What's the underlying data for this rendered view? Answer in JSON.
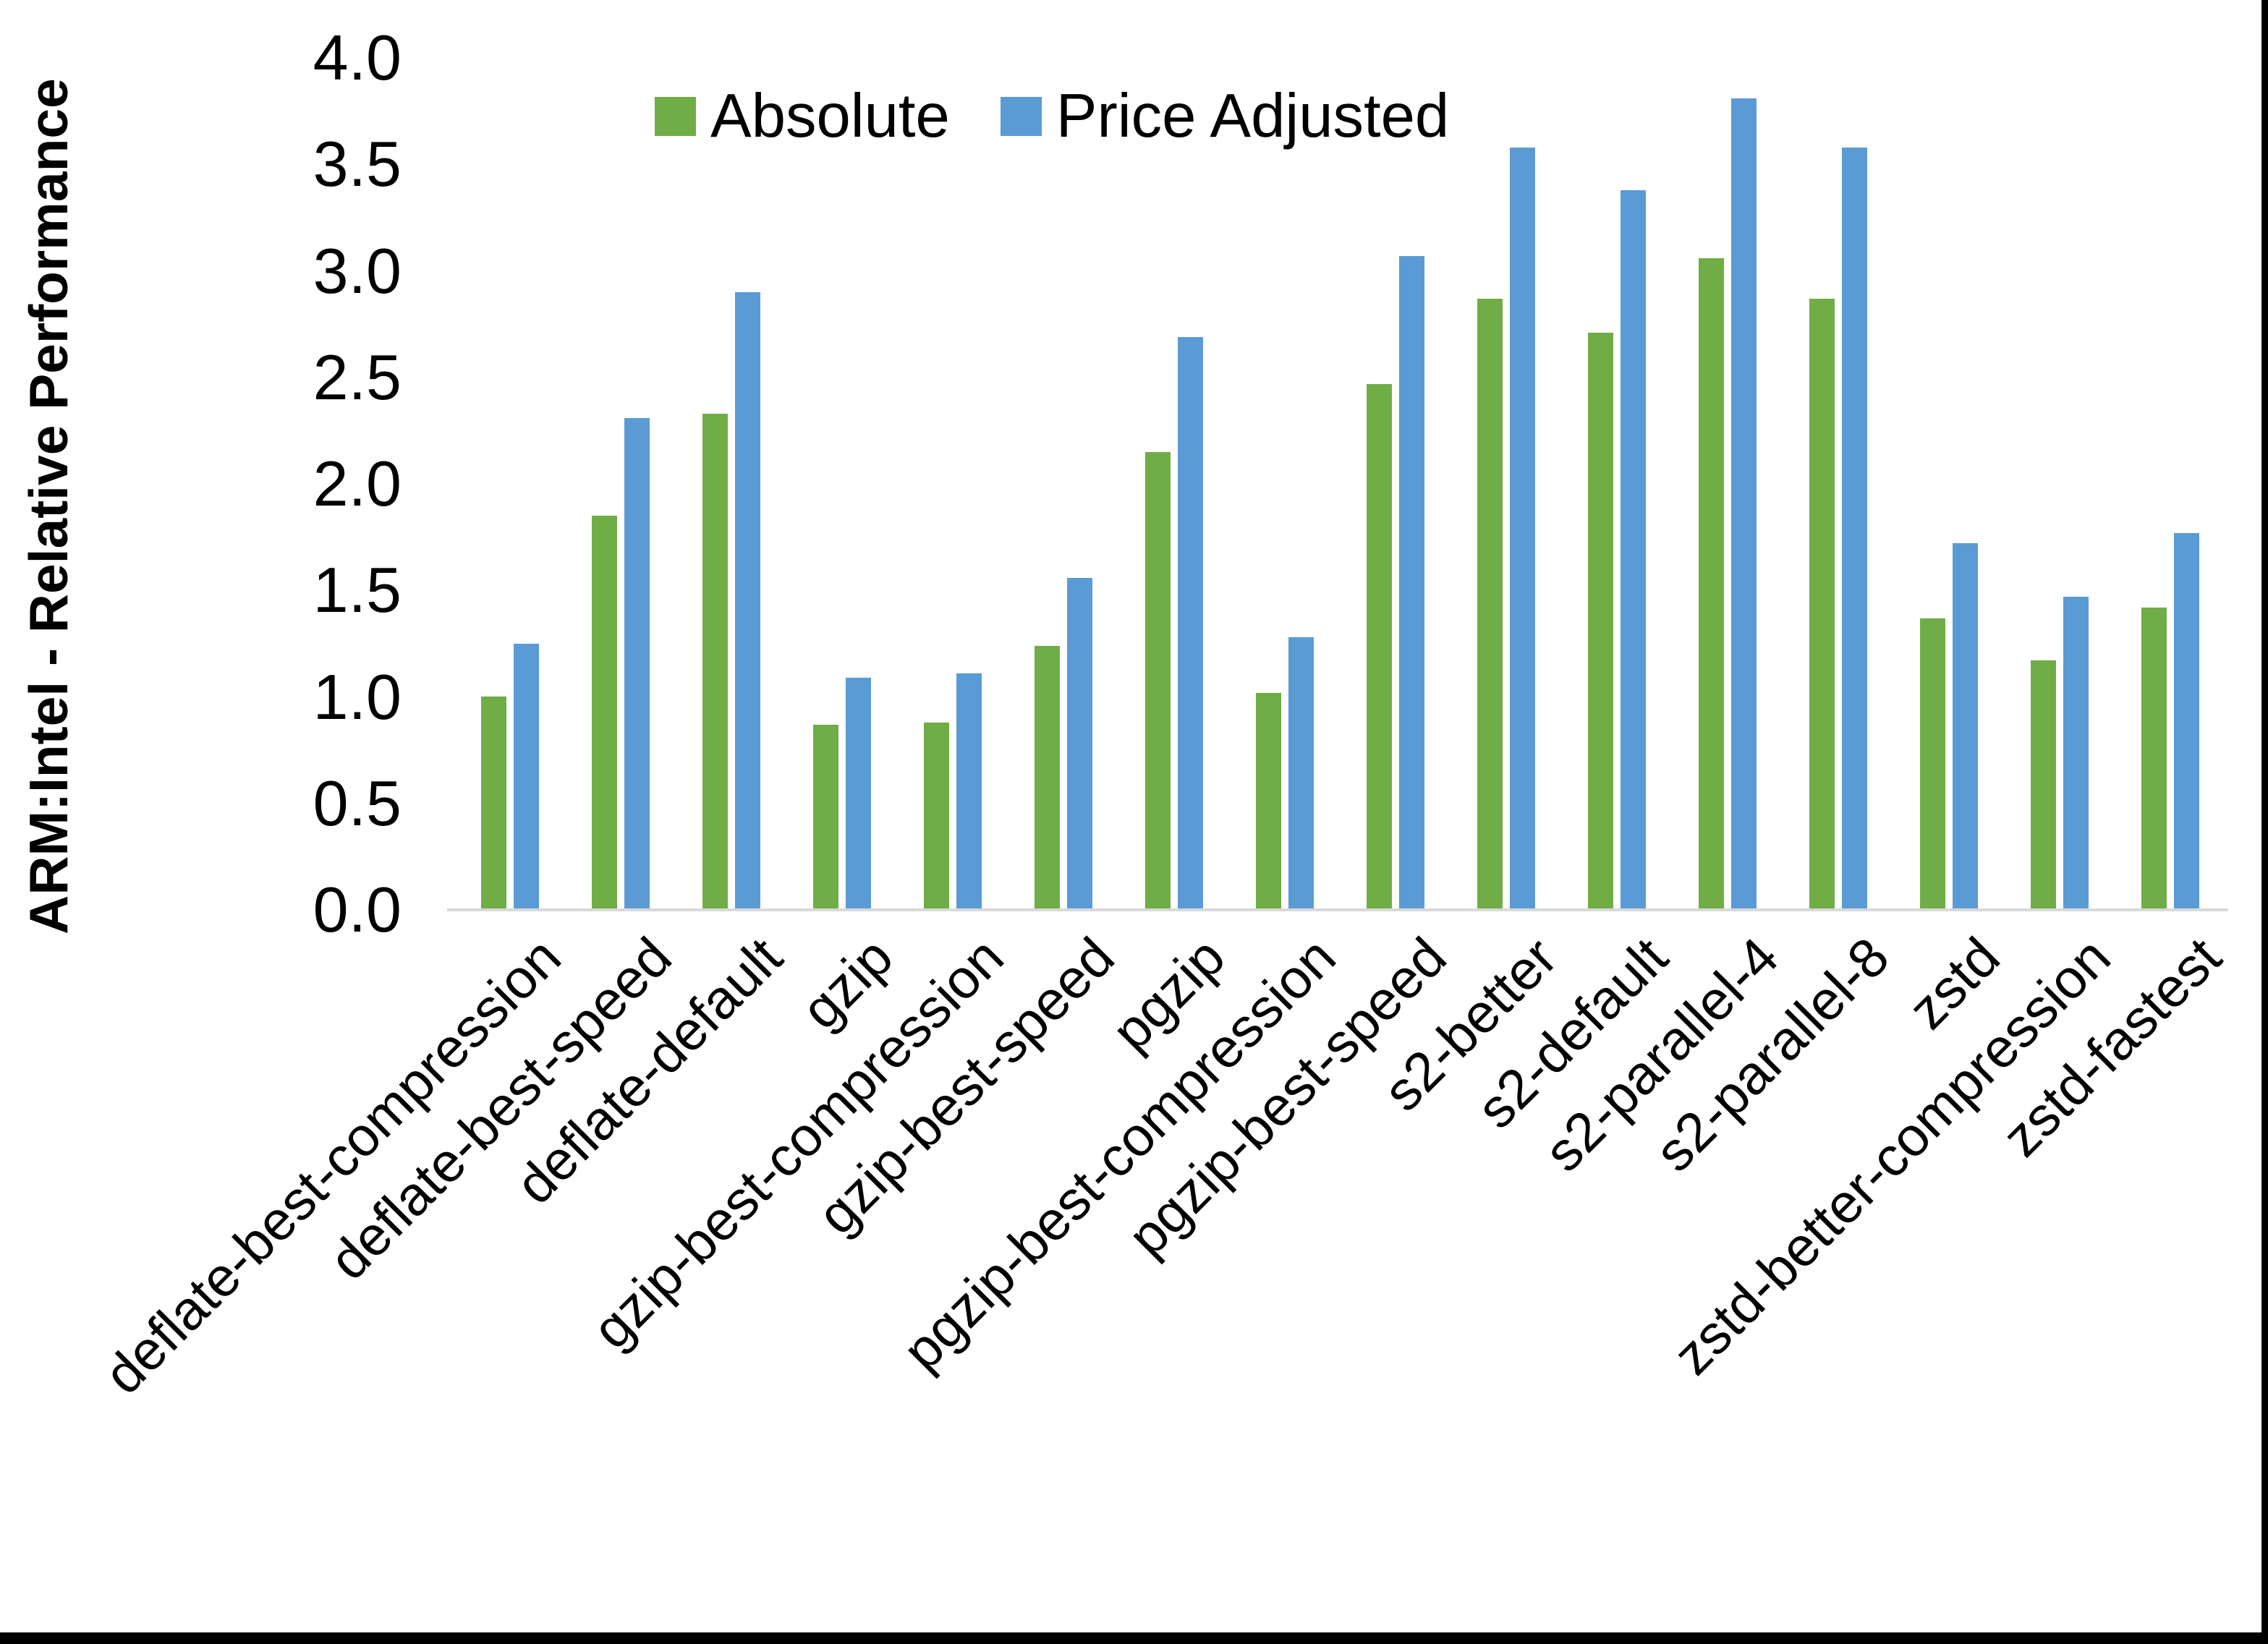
{
  "chart_data": {
    "type": "bar",
    "title": "",
    "xlabel": "",
    "ylabel": "ARM:Intel - Relative Performance",
    "ylim": [
      0.0,
      4.0
    ],
    "ytick_step": 0.5,
    "ytick_labels": [
      "0.0",
      "0.5",
      "1.0",
      "1.5",
      "2.0",
      "2.5",
      "3.0",
      "3.5",
      "4.0"
    ],
    "grid": false,
    "legend_position": "top-center",
    "categories": [
      "deflate-best-compression",
      "deflate-best-speed",
      "deflate-default",
      "gzip",
      "gzip-best-compression",
      "gzip-best-speed",
      "pgzip",
      "pgzip-best-compression",
      "pgzip-best-speed",
      "s2-better",
      "s2-default",
      "s2-parallel-4",
      "s2-parallel-8",
      "zstd",
      "zstd-better-compression",
      "zstd-fastest"
    ],
    "series": [
      {
        "name": "Absolute",
        "color": "#70AD47",
        "values": [
          1.0,
          1.85,
          2.33,
          0.87,
          0.88,
          1.24,
          2.15,
          1.02,
          2.47,
          2.87,
          2.71,
          3.06,
          2.87,
          1.37,
          1.17,
          1.42
        ]
      },
      {
        "name": "Price Adjusted",
        "color": "#5B9BD5",
        "values": [
          1.25,
          2.31,
          2.9,
          1.09,
          1.11,
          1.56,
          2.69,
          1.28,
          3.07,
          3.58,
          3.38,
          3.81,
          3.58,
          1.72,
          1.47,
          1.77
        ]
      }
    ]
  },
  "colors": {
    "background": "#FFFFFF",
    "text": "#000000",
    "axis_line": "#D9D9D9",
    "page_border": "#000000"
  }
}
